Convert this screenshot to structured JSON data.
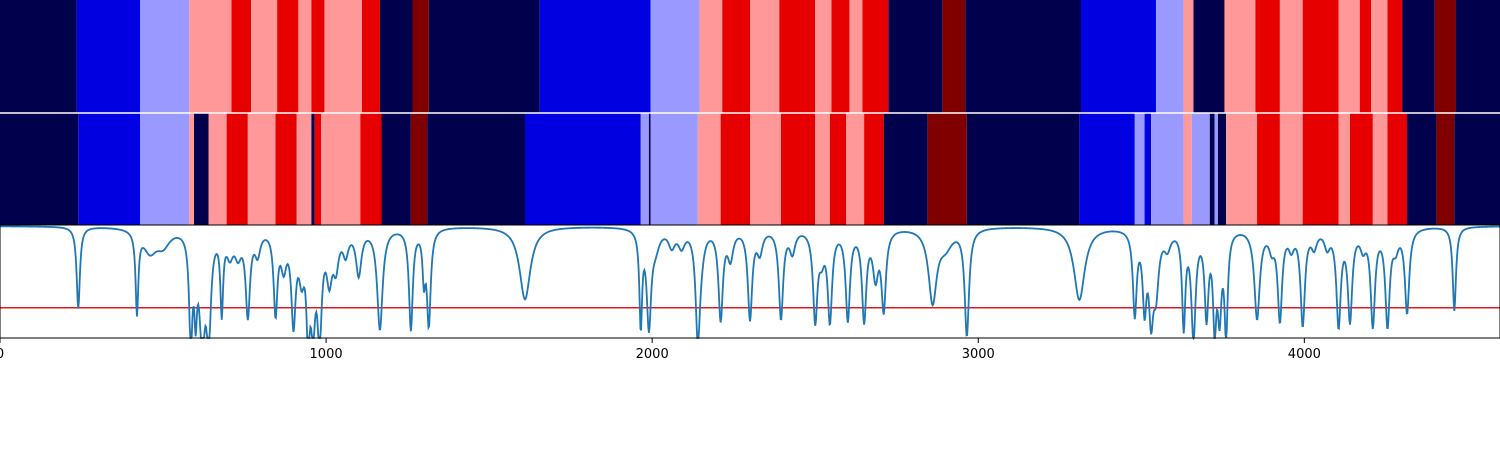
{
  "chart_data": {
    "type": "heatmap",
    "x_range": [
      0,
      4600
    ],
    "xticks": [
      0,
      1000,
      2000,
      3000,
      4000
    ],
    "state_colors": {
      "0": "#00004c",
      "1": "#0000e0",
      "2": "#9999ff",
      "3": "#ff9999",
      "4": "#e60000",
      "5": "#800000"
    },
    "track_top_segments": [
      [
        0,
        235,
        0
      ],
      [
        235,
        430,
        1
      ],
      [
        430,
        580,
        2
      ],
      [
        580,
        710,
        3
      ],
      [
        710,
        770,
        4
      ],
      [
        770,
        850,
        3
      ],
      [
        850,
        915,
        4
      ],
      [
        915,
        955,
        3
      ],
      [
        955,
        995,
        4
      ],
      [
        995,
        1110,
        3
      ],
      [
        1110,
        1165,
        4
      ],
      [
        1165,
        1265,
        0
      ],
      [
        1265,
        1315,
        5
      ],
      [
        1315,
        1655,
        0
      ],
      [
        1655,
        1995,
        1
      ],
      [
        1995,
        2145,
        2
      ],
      [
        2145,
        2215,
        3
      ],
      [
        2215,
        2300,
        4
      ],
      [
        2300,
        2390,
        3
      ],
      [
        2390,
        2500,
        4
      ],
      [
        2500,
        2550,
        3
      ],
      [
        2550,
        2605,
        4
      ],
      [
        2605,
        2645,
        3
      ],
      [
        2645,
        2725,
        4
      ],
      [
        2725,
        2890,
        0
      ],
      [
        2890,
        2960,
        5
      ],
      [
        2960,
        3315,
        0
      ],
      [
        3315,
        3545,
        1
      ],
      [
        3545,
        3630,
        2
      ],
      [
        3630,
        3660,
        3
      ],
      [
        3660,
        3755,
        0
      ],
      [
        3755,
        3850,
        3
      ],
      [
        3850,
        3925,
        4
      ],
      [
        3925,
        3995,
        3
      ],
      [
        3995,
        4105,
        4
      ],
      [
        4105,
        4170,
        3
      ],
      [
        4170,
        4205,
        4
      ],
      [
        4205,
        4255,
        3
      ],
      [
        4255,
        4300,
        4
      ],
      [
        4300,
        4400,
        0
      ],
      [
        4400,
        4465,
        5
      ],
      [
        4465,
        4600,
        0
      ]
    ],
    "track_bottom_segments": [
      [
        0,
        240,
        0
      ],
      [
        240,
        430,
        1
      ],
      [
        430,
        580,
        2
      ],
      [
        580,
        595,
        3
      ],
      [
        595,
        640,
        0
      ],
      [
        640,
        695,
        3
      ],
      [
        695,
        760,
        4
      ],
      [
        760,
        845,
        3
      ],
      [
        845,
        910,
        4
      ],
      [
        910,
        955,
        3
      ],
      [
        955,
        965,
        0
      ],
      [
        965,
        985,
        4
      ],
      [
        985,
        1105,
        3
      ],
      [
        1105,
        1170,
        4
      ],
      [
        1170,
        1260,
        0
      ],
      [
        1260,
        1310,
        5
      ],
      [
        1310,
        1610,
        0
      ],
      [
        1610,
        1965,
        1
      ],
      [
        1965,
        1990,
        2
      ],
      [
        1990,
        1995,
        0
      ],
      [
        1995,
        2140,
        2
      ],
      [
        2140,
        2210,
        3
      ],
      [
        2210,
        2300,
        4
      ],
      [
        2300,
        2395,
        3
      ],
      [
        2395,
        2500,
        4
      ],
      [
        2500,
        2545,
        3
      ],
      [
        2545,
        2595,
        4
      ],
      [
        2595,
        2650,
        3
      ],
      [
        2650,
        2710,
        4
      ],
      [
        2710,
        2845,
        0
      ],
      [
        2845,
        2965,
        5
      ],
      [
        2965,
        3310,
        0
      ],
      [
        3310,
        3480,
        1
      ],
      [
        3480,
        3510,
        2
      ],
      [
        3510,
        3530,
        1
      ],
      [
        3530,
        3630,
        2
      ],
      [
        3630,
        3655,
        3
      ],
      [
        3655,
        3710,
        2
      ],
      [
        3710,
        3725,
        0
      ],
      [
        3725,
        3735,
        2
      ],
      [
        3735,
        3760,
        0
      ],
      [
        3760,
        3855,
        3
      ],
      [
        3855,
        3925,
        4
      ],
      [
        3925,
        3995,
        3
      ],
      [
        3995,
        4105,
        4
      ],
      [
        4105,
        4140,
        3
      ],
      [
        4140,
        4210,
        4
      ],
      [
        4210,
        4255,
        3
      ],
      [
        4255,
        4315,
        4
      ],
      [
        4315,
        4405,
        0
      ],
      [
        4405,
        4460,
        5
      ],
      [
        4460,
        4600,
        0
      ]
    ],
    "line_series": {
      "color": "#1f77b4",
      "ylim": [
        0,
        1
      ],
      "baseline": 1.0,
      "dips": [
        [
          240,
          0.27,
          6
        ],
        [
          420,
          0.27,
          5
        ],
        [
          460,
          0.8,
          25
        ],
        [
          500,
          0.86,
          25
        ],
        [
          585,
          0.05,
          6
        ],
        [
          600,
          0.4,
          5
        ],
        [
          620,
          0.05,
          10
        ],
        [
          640,
          0.1,
          8
        ],
        [
          680,
          0.3,
          5
        ],
        [
          705,
          0.8,
          12
        ],
        [
          730,
          0.8,
          12
        ],
        [
          760,
          0.25,
          8
        ],
        [
          790,
          0.8,
          10
        ],
        [
          845,
          0.27,
          7
        ],
        [
          870,
          0.7,
          10
        ],
        [
          900,
          0.2,
          8
        ],
        [
          925,
          0.65,
          10
        ],
        [
          945,
          0.15,
          6
        ],
        [
          960,
          0.25,
          8
        ],
        [
          980,
          0.1,
          8
        ],
        [
          1010,
          0.6,
          10
        ],
        [
          1030,
          0.7,
          10
        ],
        [
          1060,
          0.8,
          10
        ],
        [
          1100,
          0.6,
          10
        ],
        [
          1165,
          0.1,
          10
        ],
        [
          1260,
          0.1,
          7
        ],
        [
          1300,
          0.6,
          5
        ],
        [
          1315,
          0.15,
          7
        ],
        [
          1610,
          0.35,
          20
        ],
        [
          1965,
          0.15,
          5
        ],
        [
          1990,
          0.15,
          8
        ],
        [
          2010,
          0.85,
          15
        ],
        [
          2060,
          0.85,
          12
        ],
        [
          2090,
          0.85,
          12
        ],
        [
          2140,
          0.05,
          8
        ],
        [
          2150,
          0.85,
          12
        ],
        [
          2210,
          0.2,
          8
        ],
        [
          2240,
          0.75,
          10
        ],
        [
          2300,
          0.2,
          8
        ],
        [
          2330,
          0.8,
          10
        ],
        [
          2395,
          0.2,
          8
        ],
        [
          2430,
          0.8,
          10
        ],
        [
          2500,
          0.2,
          8
        ],
        [
          2520,
          0.8,
          10
        ],
        [
          2545,
          0.2,
          8
        ],
        [
          2600,
          0.2,
          8
        ],
        [
          2650,
          0.2,
          8
        ],
        [
          2685,
          0.6,
          10
        ],
        [
          2710,
          0.3,
          8
        ],
        [
          2860,
          0.35,
          15
        ],
        [
          2900,
          0.85,
          25
        ],
        [
          2965,
          0.05,
          8
        ],
        [
          3310,
          0.35,
          20
        ],
        [
          3480,
          0.25,
          7
        ],
        [
          3510,
          0.35,
          7
        ],
        [
          3530,
          0.3,
          8
        ],
        [
          3545,
          0.5,
          10
        ],
        [
          3580,
          0.85,
          12
        ],
        [
          3630,
          0.15,
          6
        ],
        [
          3660,
          0.05,
          8
        ],
        [
          3700,
          0.25,
          7
        ],
        [
          3725,
          0.2,
          6
        ],
        [
          3740,
          0.3,
          7
        ],
        [
          3760,
          0.1,
          6
        ],
        [
          3855,
          0.2,
          10
        ],
        [
          3900,
          0.85,
          10
        ],
        [
          3925,
          0.2,
          8
        ],
        [
          3960,
          0.85,
          10
        ],
        [
          3995,
          0.15,
          8
        ],
        [
          4030,
          0.85,
          10
        ],
        [
          4070,
          0.85,
          10
        ],
        [
          4105,
          0.15,
          8
        ],
        [
          4140,
          0.2,
          8
        ],
        [
          4180,
          0.85,
          10
        ],
        [
          4210,
          0.15,
          8
        ],
        [
          4255,
          0.15,
          8
        ],
        [
          4280,
          0.85,
          10
        ],
        [
          4315,
          0.25,
          8
        ],
        [
          4460,
          0.25,
          6
        ]
      ]
    },
    "threshold": {
      "value": 0.27,
      "color": "#e31a1c"
    }
  }
}
